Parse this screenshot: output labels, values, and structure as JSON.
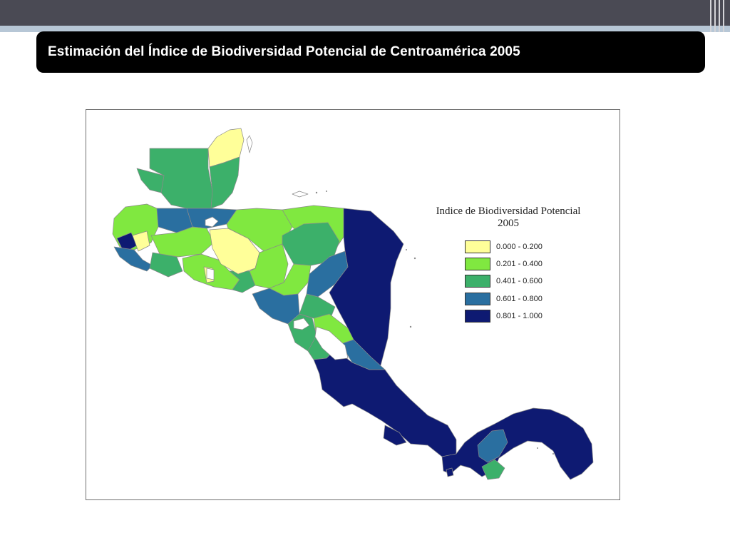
{
  "slide": {
    "title": "Estimación del Índice de Biodiversidad Potencial de Centroamérica 2005"
  },
  "map": {
    "legend_title_line1": "Indice de Biodiversidad Potencial",
    "legend_title_line2": "2005",
    "classes": [
      {
        "label": "0.000 - 0.200",
        "color": "#ffff99"
      },
      {
        "label": "0.201 - 0.400",
        "color": "#80e840"
      },
      {
        "label": "0.401 - 0.600",
        "color": "#3cb06a"
      },
      {
        "label": "0.601 - 0.800",
        "color": "#2a6fa0"
      },
      {
        "label": "0.801 - 1.000",
        "color": "#0e1a72"
      }
    ]
  }
}
